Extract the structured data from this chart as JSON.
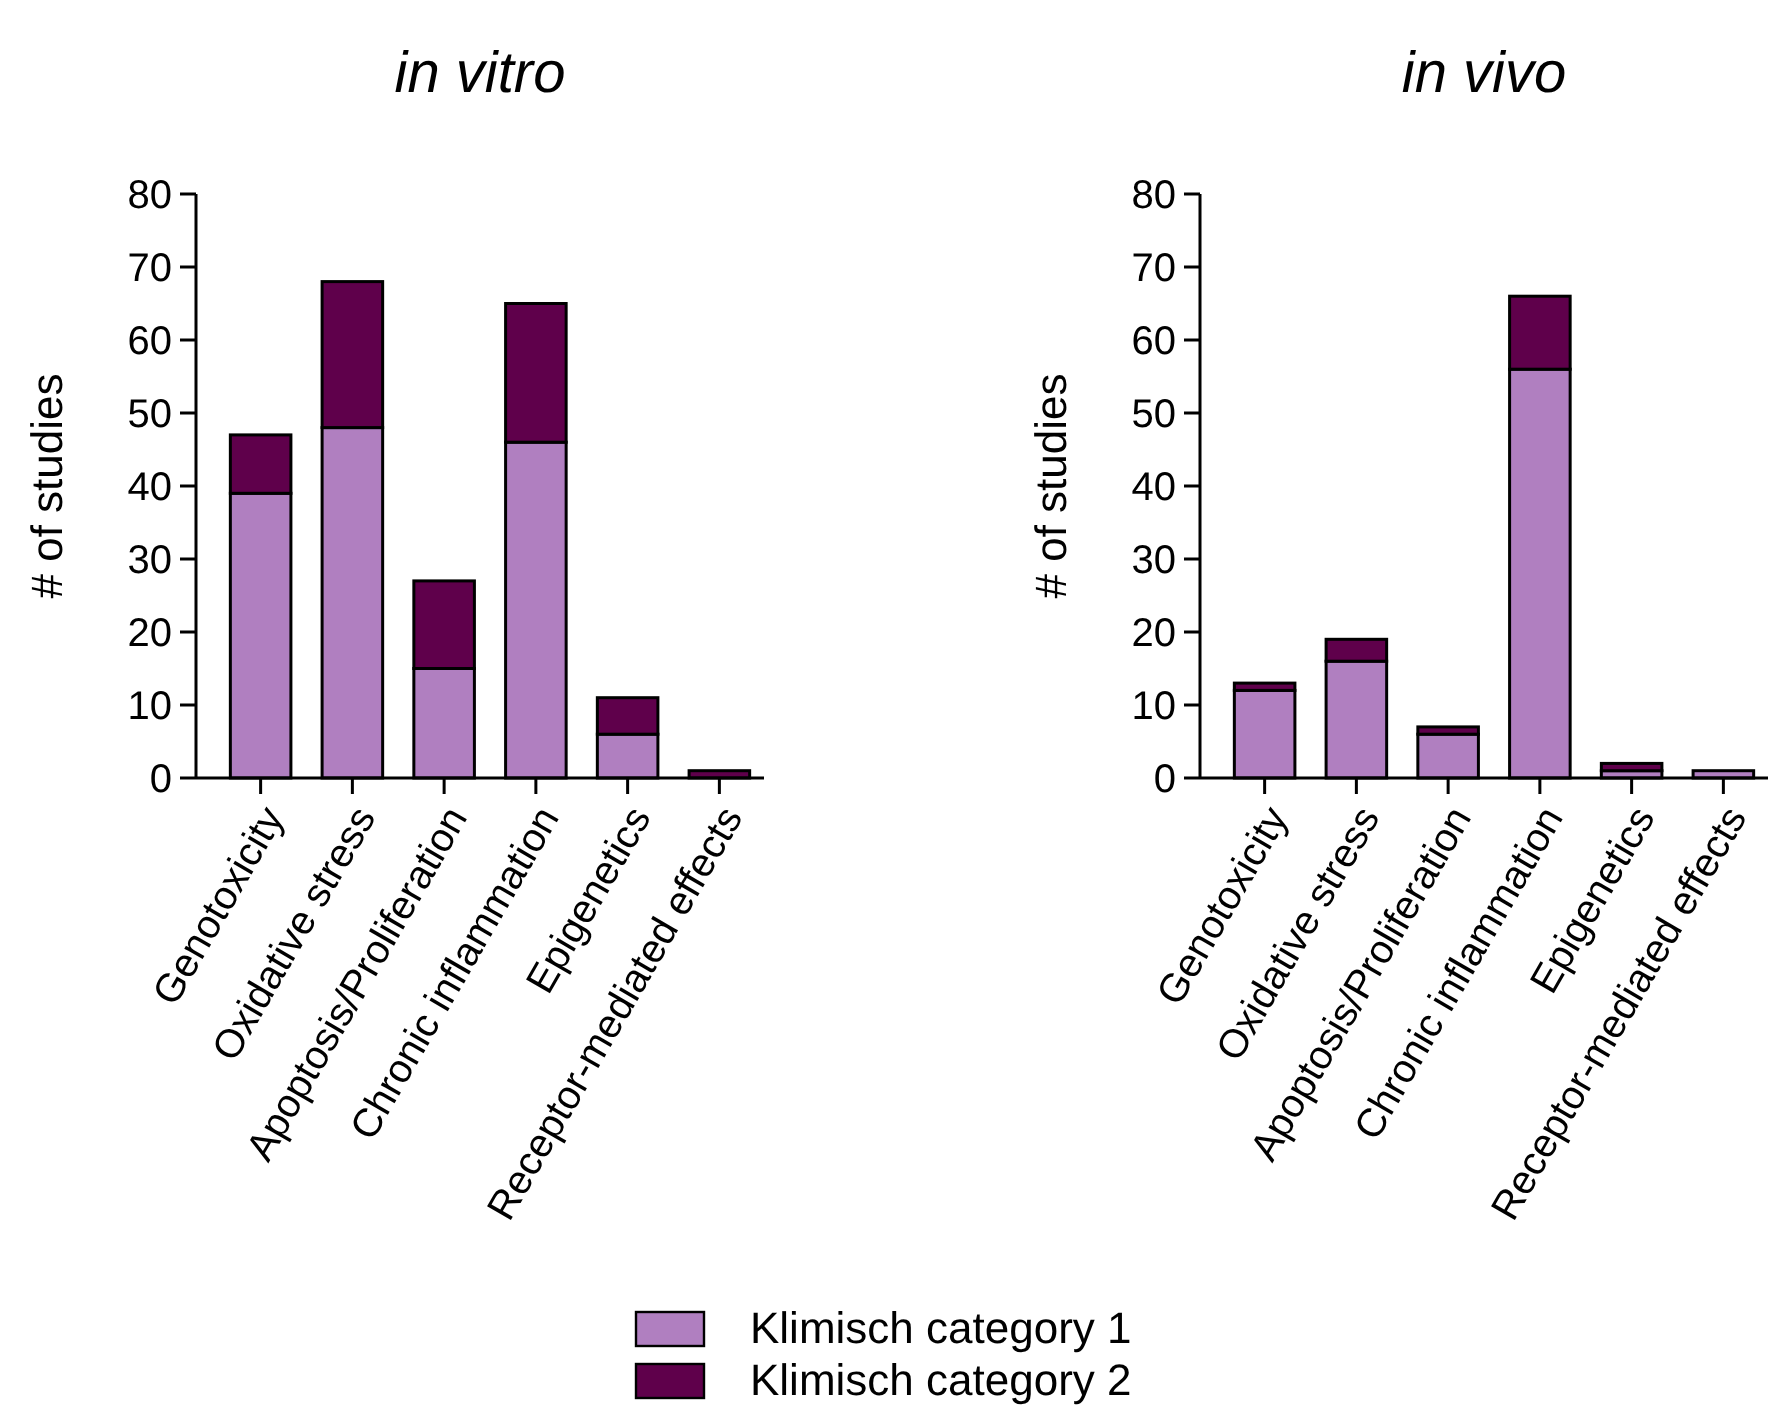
{
  "chart_data": [
    {
      "type": "bar",
      "title": "in vitro",
      "ylabel": "# of studies",
      "categories": [
        "Genotoxicity",
        "Oxidative stress",
        "Apoptosis/Proliferation",
        "Chronic inflammation",
        "Epigenetics",
        "Receptor-mediated effects"
      ],
      "stacked": true,
      "ylim": [
        0,
        80
      ],
      "yticks": [
        0,
        10,
        20,
        30,
        40,
        50,
        60,
        70,
        80
      ],
      "legend": "bottom",
      "series": [
        {
          "name": "Klimisch category 1",
          "color": "#b07fc0",
          "values": [
            39,
            48,
            15,
            46,
            6,
            0
          ]
        },
        {
          "name": "Klimisch category 2",
          "color": "#5f004b",
          "values": [
            8,
            20,
            12,
            19,
            5,
            1
          ]
        }
      ]
    },
    {
      "type": "bar",
      "title": "in vivo",
      "ylabel": "# of studies",
      "categories": [
        "Genotoxicity",
        "Oxidative stress",
        "Apoptosis/Proliferation",
        "Chronic inflammation",
        "Epigenetics",
        "Receptor-mediated effects"
      ],
      "stacked": true,
      "ylim": [
        0,
        80
      ],
      "yticks": [
        0,
        10,
        20,
        30,
        40,
        50,
        60,
        70,
        80
      ],
      "series": [
        {
          "color": "#b07fc0",
          "values": [
            12,
            16,
            6,
            56,
            1,
            1
          ]
        },
        {
          "color": "#5f004b",
          "values": [
            1,
            3,
            1,
            10,
            1,
            0
          ]
        }
      ]
    }
  ]
}
